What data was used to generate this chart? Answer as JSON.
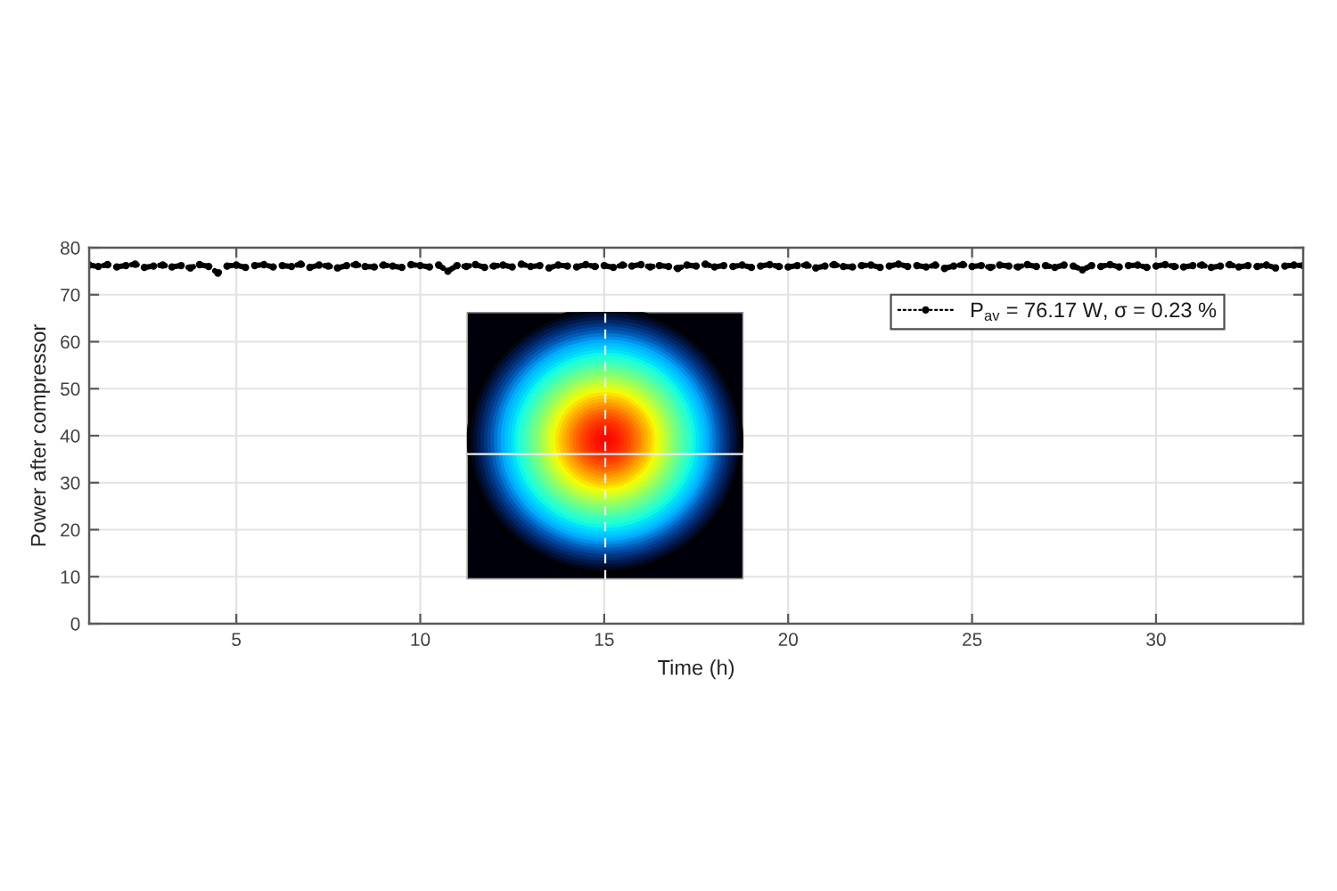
{
  "chart_data": {
    "type": "line",
    "xlabel": "Time (h)",
    "ylabel": "Power after compressor",
    "xlim": [
      1,
      34
    ],
    "ylim": [
      0,
      80
    ],
    "xticks": [
      5,
      10,
      15,
      20,
      25,
      30
    ],
    "yticks": [
      0,
      10,
      20,
      30,
      40,
      50,
      60,
      70,
      80
    ],
    "grid": true,
    "legend": "top right",
    "marker": "circle",
    "line_style": "dotted",
    "x": [
      1.0,
      1.25,
      1.5,
      1.75,
      2.0,
      2.25,
      2.5,
      2.75,
      3.0,
      3.25,
      3.5,
      3.75,
      4.0,
      4.25,
      4.5,
      4.75,
      5.0,
      5.25,
      5.5,
      5.75,
      6.0,
      6.25,
      6.5,
      6.75,
      7.0,
      7.25,
      7.5,
      7.75,
      8.0,
      8.25,
      8.5,
      8.75,
      9.0,
      9.25,
      9.5,
      9.75,
      10.0,
      10.25,
      10.5,
      10.75,
      11.0,
      11.25,
      11.5,
      11.75,
      12.0,
      12.25,
      12.5,
      12.75,
      13.0,
      13.25,
      13.5,
      13.75,
      14.0,
      14.25,
      14.5,
      14.75,
      15.0,
      15.25,
      15.5,
      15.75,
      16.0,
      16.25,
      16.5,
      16.75,
      17.0,
      17.25,
      17.5,
      17.75,
      18.0,
      18.25,
      18.5,
      18.75,
      19.0,
      19.25,
      19.5,
      19.75,
      20.0,
      20.25,
      20.5,
      20.75,
      21.0,
      21.25,
      21.5,
      21.75,
      22.0,
      22.25,
      22.5,
      22.75,
      23.0,
      23.25,
      23.5,
      23.75,
      24.0,
      24.25,
      24.5,
      24.75,
      25.0,
      25.25,
      25.5,
      25.75,
      26.0,
      26.25,
      26.5,
      26.75,
      27.0,
      27.25,
      27.5,
      27.75,
      28.0,
      28.25,
      28.5,
      28.75,
      29.0,
      29.25,
      29.5,
      29.75,
      30.0,
      30.25,
      30.5,
      30.75,
      31.0,
      31.25,
      31.5,
      31.75,
      32.0,
      32.25,
      32.5,
      32.75,
      33.0,
      33.25,
      33.5,
      33.75,
      34.0
    ],
    "series": [
      {
        "name": "P$_{av}$ = 76.17 W, σ = 0.23 %",
        "color": "#000000",
        "values": [
          76.3,
          76.0,
          76.4,
          75.9,
          76.2,
          76.5,
          75.8,
          76.1,
          76.3,
          75.9,
          76.2,
          75.7,
          76.4,
          76.0,
          74.6,
          76.1,
          76.3,
          75.8,
          76.2,
          76.4,
          75.9,
          76.2,
          76.0,
          76.5,
          75.8,
          76.3,
          76.1,
          75.7,
          76.2,
          76.4,
          76.0,
          75.9,
          76.3,
          76.1,
          75.8,
          76.4,
          76.2,
          75.9,
          76.3,
          75.0,
          76.2,
          76.0,
          76.4,
          75.8,
          76.1,
          76.3,
          75.9,
          76.5,
          76.0,
          76.2,
          75.7,
          76.3,
          76.1,
          75.9,
          76.4,
          76.0,
          76.2,
          75.8,
          76.3,
          76.1,
          76.4,
          75.9,
          76.2,
          76.0,
          75.6,
          76.3,
          76.1,
          76.5,
          75.9,
          76.2,
          76.0,
          76.3,
          75.8,
          76.1,
          76.4,
          76.0,
          75.9,
          76.2,
          76.3,
          75.7,
          76.1,
          76.4,
          76.0,
          75.9,
          76.2,
          76.3,
          75.8,
          76.1,
          76.5,
          76.0,
          76.2,
          75.9,
          76.3,
          75.6,
          76.1,
          76.4,
          76.0,
          76.2,
          75.8,
          76.3,
          76.1,
          75.9,
          76.4,
          76.0,
          76.2,
          75.8,
          76.3,
          76.1,
          75.3,
          76.2,
          76.0,
          76.4,
          75.9,
          76.2,
          76.3,
          75.8,
          76.1,
          76.4,
          76.0,
          75.9,
          76.2,
          76.3,
          75.8,
          76.1,
          76.4,
          75.9,
          76.2,
          76.0,
          76.3,
          75.7,
          76.1,
          76.3,
          76.2
        ]
      }
    ]
  }
}
